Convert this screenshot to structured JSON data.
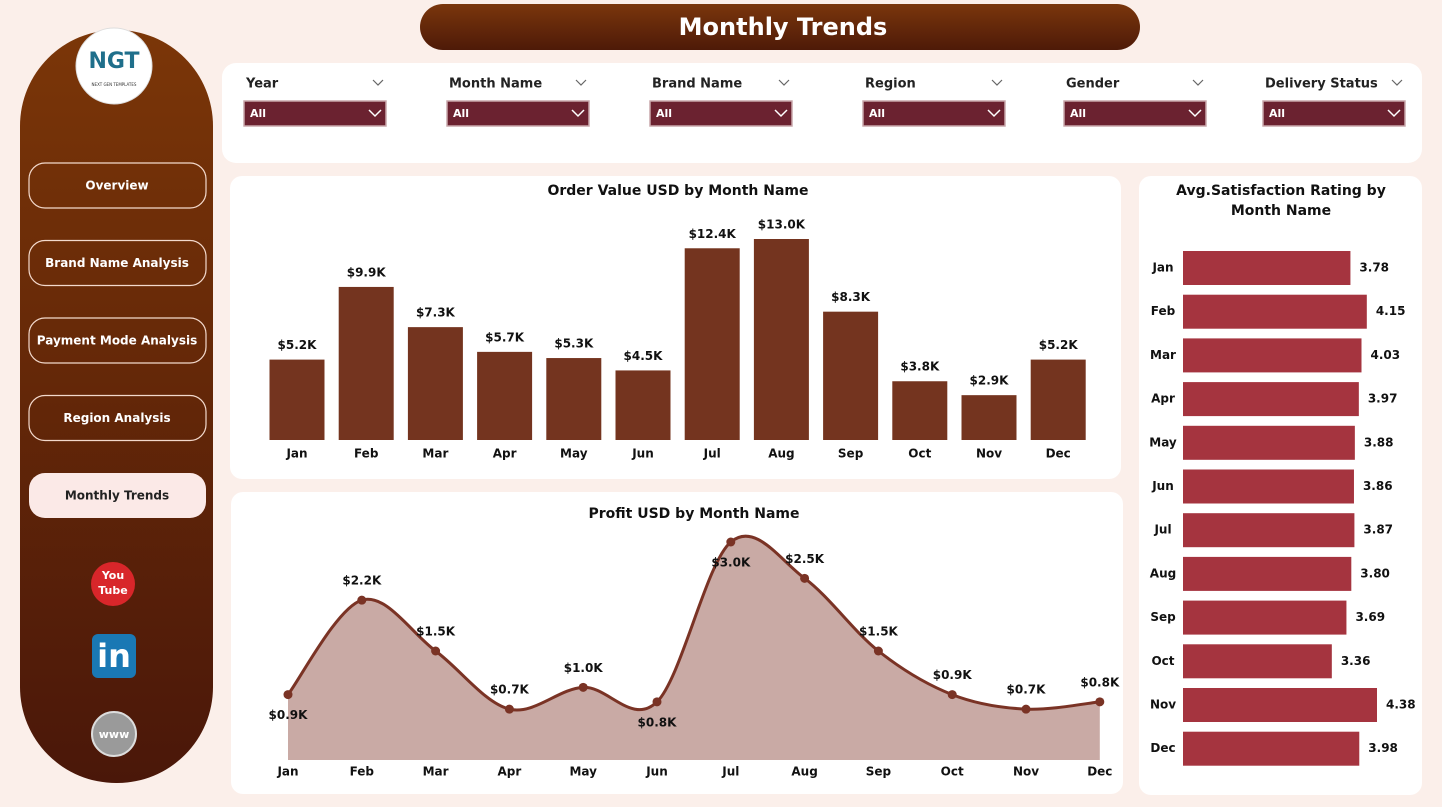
{
  "header": {
    "title": "Monthly Trends"
  },
  "logo": {
    "text": "NGT",
    "subtitle": "NEXT GEN TEMPLATES"
  },
  "nav": [
    "Overview",
    "Brand Name Analysis",
    "Payment Mode Analysis",
    "Region Analysis",
    "Monthly Trends"
  ],
  "social": {
    "youtube_top": "You",
    "youtube_bottom": "Tube",
    "linkedin": "in",
    "web": "www"
  },
  "filters": [
    {
      "label": "Year",
      "value": "All"
    },
    {
      "label": "Month Name",
      "value": "All"
    },
    {
      "label": "Brand Name",
      "value": "All"
    },
    {
      "label": "Region",
      "value": "All"
    },
    {
      "label": "Gender",
      "value": "All"
    },
    {
      "label": "Delivery Status",
      "value": "All"
    }
  ],
  "chart_data": [
    {
      "type": "bar",
      "title": "Order Value USD by Month Name",
      "categories": [
        "Jan",
        "Feb",
        "Mar",
        "Apr",
        "May",
        "Jun",
        "Jul",
        "Aug",
        "Sep",
        "Oct",
        "Nov",
        "Dec"
      ],
      "values": [
        5200,
        9900,
        7300,
        5700,
        5300,
        4500,
        12400,
        13000,
        8300,
        3800,
        2900,
        5200
      ],
      "value_labels": [
        "$5.2K",
        "$9.9K",
        "$7.3K",
        "$5.7K",
        "$5.3K",
        "$4.5K",
        "$12.4K",
        "$13.0K",
        "$8.3K",
        "$3.8K",
        "$2.9K",
        "$5.2K"
      ],
      "color": "#74341f"
    },
    {
      "type": "area",
      "title": "Profit USD by Month Name",
      "categories": [
        "Jan",
        "Feb",
        "Mar",
        "Apr",
        "May",
        "Jun",
        "Jul",
        "Aug",
        "Sep",
        "Oct",
        "Nov",
        "Dec"
      ],
      "values": [
        900,
        2200,
        1500,
        700,
        1000,
        800,
        3000,
        2500,
        1500,
        900,
        700,
        800
      ],
      "value_labels": [
        "$0.9K",
        "$2.2K",
        "$1.5K",
        "$0.7K",
        "$1.0K",
        "$0.8K",
        "$3.0K",
        "$2.5K",
        "$1.5K",
        "$0.9K",
        "$0.7K",
        "$0.8K"
      ],
      "color": "#7a3325"
    },
    {
      "type": "hbar",
      "title": "Avg.Satisfaction Rating by Month Name",
      "categories": [
        "Jan",
        "Feb",
        "Mar",
        "Apr",
        "May",
        "Jun",
        "Jul",
        "Aug",
        "Sep",
        "Oct",
        "Nov",
        "Dec"
      ],
      "values": [
        3.78,
        4.15,
        4.03,
        3.97,
        3.88,
        3.86,
        3.87,
        3.8,
        3.69,
        3.36,
        4.38,
        3.98
      ],
      "value_labels": [
        "3.78",
        "4.15",
        "4.03",
        "3.97",
        "3.88",
        "3.86",
        "3.87",
        "3.80",
        "3.69",
        "3.36",
        "4.38",
        "3.98"
      ],
      "color": "#a5343f"
    }
  ]
}
